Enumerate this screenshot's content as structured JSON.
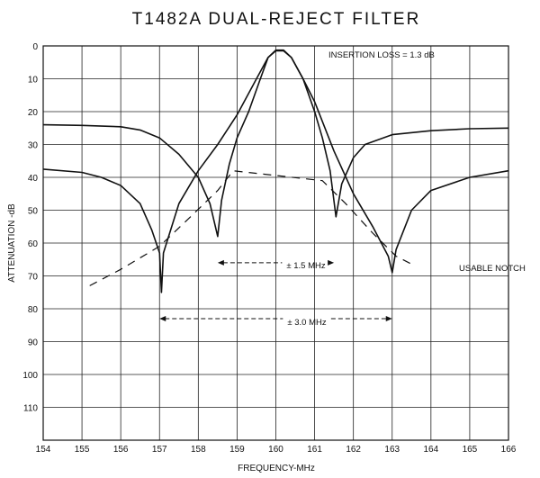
{
  "chart_data": {
    "type": "line",
    "title": "T1482A DUAL-REJECT FILTER",
    "xlabel": "FREQUENCY-MHz",
    "ylabel": "ATTENUATION -dB",
    "xlim": [
      154,
      166
    ],
    "ylim": [
      0,
      120
    ],
    "y_inverted": true,
    "grid": true,
    "xticks": [
      "154",
      "155",
      "156",
      "157",
      "158",
      "159",
      "160",
      "161",
      "162",
      "163",
      "164",
      "165",
      "166"
    ],
    "yticks": [
      "0",
      "10",
      "20",
      "30",
      "40",
      "50",
      "60",
      "70",
      "80",
      "90",
      "100",
      "110"
    ],
    "series": [
      {
        "values": [
          [
            154,
            24
          ],
          [
            155,
            24.2
          ],
          [
            156,
            24.6
          ],
          [
            156.5,
            25.6
          ],
          [
            157,
            28
          ],
          [
            157.5,
            33
          ],
          [
            158,
            40
          ],
          [
            158.3,
            48
          ],
          [
            158.5,
            58
          ],
          [
            158.6,
            47
          ],
          [
            158.8,
            36
          ],
          [
            159,
            28
          ],
          [
            159.3,
            20
          ],
          [
            159.6,
            10
          ],
          [
            159.8,
            3.5
          ],
          [
            160,
            1.5
          ],
          [
            160.2,
            1.5
          ],
          [
            160.4,
            3.5
          ],
          [
            160.7,
            10
          ],
          [
            161,
            20
          ],
          [
            161.2,
            28
          ],
          [
            161.4,
            38
          ],
          [
            161.55,
            52
          ],
          [
            161.7,
            42
          ],
          [
            162,
            34
          ],
          [
            162.3,
            30
          ],
          [
            163,
            27
          ],
          [
            164,
            25.8
          ],
          [
            165,
            25.2
          ],
          [
            166,
            25
          ]
        ]
      },
      {
        "values": [
          [
            154,
            37.5
          ],
          [
            155,
            38.5
          ],
          [
            155.5,
            40
          ],
          [
            156,
            42.5
          ],
          [
            156.5,
            48
          ],
          [
            156.8,
            56
          ],
          [
            157,
            63
          ],
          [
            157.05,
            75
          ],
          [
            157.1,
            63
          ],
          [
            157.5,
            48
          ],
          [
            158,
            38
          ],
          [
            158.5,
            30
          ],
          [
            159,
            21
          ],
          [
            159.5,
            10
          ],
          [
            159.8,
            3.5
          ],
          [
            160,
            1.3
          ],
          [
            160.2,
            1.3
          ],
          [
            160.4,
            3.5
          ],
          [
            160.7,
            10
          ],
          [
            161,
            17
          ],
          [
            161.5,
            32
          ],
          [
            162,
            45
          ],
          [
            162.5,
            55
          ],
          [
            162.9,
            64
          ],
          [
            163,
            69
          ],
          [
            163.1,
            62
          ],
          [
            163.5,
            50
          ],
          [
            164,
            44
          ],
          [
            165,
            40
          ],
          [
            166,
            38
          ]
        ]
      },
      {
        "style": "dashed",
        "values": [
          [
            155.2,
            73
          ],
          [
            156,
            68
          ],
          [
            157,
            61
          ],
          [
            157.8,
            52
          ],
          [
            158.5,
            44
          ],
          [
            158.9,
            38
          ],
          [
            161.2,
            41
          ],
          [
            161.8,
            48
          ],
          [
            162.5,
            57
          ],
          [
            163.1,
            64
          ],
          [
            163.6,
            67
          ]
        ]
      }
    ],
    "annotations": [
      {
        "text": "INSERTION LOSS = 1.3 dB"
      },
      {
        "text": "± 1.5 MHz",
        "from": 158.5,
        "to": 161.5,
        "y": 66
      },
      {
        "text": "± 3.0 MHz",
        "from": 157,
        "to": 163,
        "y": 83
      },
      {
        "text": "USABLE NOTCH"
      }
    ]
  }
}
